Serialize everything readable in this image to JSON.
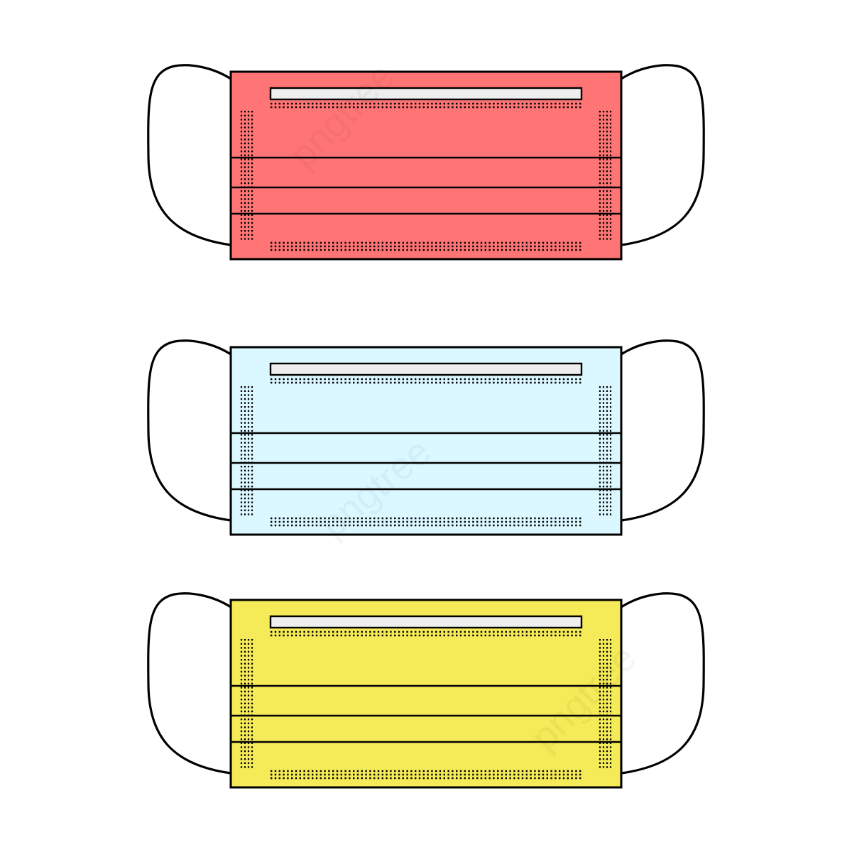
{
  "colors": {
    "background": "#ffffff",
    "outline": "#000000",
    "nose_wire": "#eeeeee"
  },
  "masks": [
    {
      "name": "red-mask",
      "fill": "#ff7575"
    },
    {
      "name": "light-blue-mask",
      "fill": "#dbf7ff"
    },
    {
      "name": "yellow-mask",
      "fill": "#f5ea58"
    }
  ],
  "watermark": {
    "text": "pngtree",
    "icon": "pngtree-logo"
  }
}
